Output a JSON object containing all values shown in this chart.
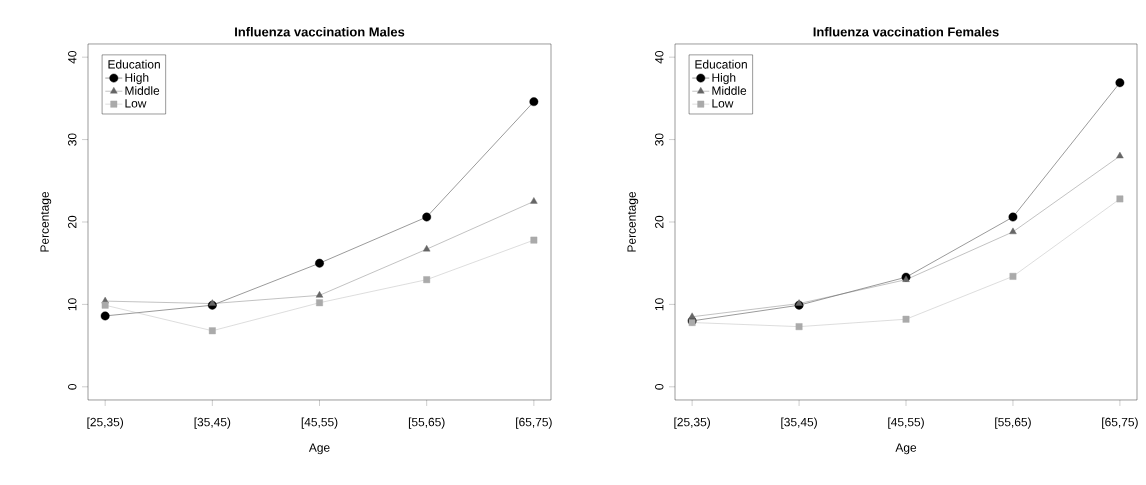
{
  "chart_data": [
    {
      "type": "line",
      "title": "Influenza vaccination  Males",
      "xlabel": "Age",
      "ylabel": "Percentage",
      "legend_title": "Education",
      "legend": "top left",
      "grid": false,
      "categories": [
        "[25,35)",
        "[35,45)",
        "[45,55)",
        "[55,65)",
        "[65,75)"
      ],
      "ylim": [
        -1.6,
        41.6
      ],
      "yticks": [
        0,
        10,
        20,
        30,
        40
      ],
      "series": [
        {
          "name": "High",
          "color": "#000000",
          "marker": "circle",
          "values": [
            8.6,
            9.9,
            15.0,
            20.6,
            34.6
          ]
        },
        {
          "name": "Middle",
          "color": "#666666",
          "marker": "triangle",
          "values": [
            10.4,
            10.1,
            11.1,
            16.7,
            22.5
          ]
        },
        {
          "name": "Low",
          "color": "#aaaaaa",
          "marker": "square",
          "values": [
            9.9,
            6.8,
            10.2,
            13.0,
            17.8
          ]
        }
      ]
    },
    {
      "type": "line",
      "title": "Influenza vaccination  Females",
      "xlabel": "Age",
      "ylabel": "Percentage",
      "legend_title": "Education",
      "legend": "top left",
      "grid": false,
      "categories": [
        "[25,35)",
        "[35,45)",
        "[45,55)",
        "[55,65)",
        "[65,75)"
      ],
      "ylim": [
        -1.6,
        41.6
      ],
      "yticks": [
        0,
        10,
        20,
        30,
        40
      ],
      "series": [
        {
          "name": "High",
          "color": "#000000",
          "marker": "circle",
          "values": [
            8.0,
            9.9,
            13.3,
            20.6,
            36.9
          ]
        },
        {
          "name": "Middle",
          "color": "#666666",
          "marker": "triangle",
          "values": [
            8.5,
            10.1,
            13.0,
            18.8,
            28.0
          ]
        },
        {
          "name": "Low",
          "color": "#aaaaaa",
          "marker": "square",
          "values": [
            7.8,
            7.3,
            8.2,
            13.4,
            22.8
          ]
        }
      ]
    }
  ]
}
